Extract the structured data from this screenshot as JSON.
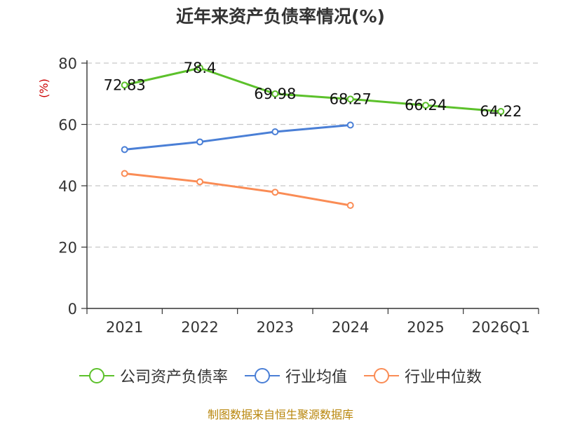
{
  "chart_data": {
    "type": "line",
    "title": "近年来资产负债率情况(%)",
    "ylabel": "(%)",
    "categories": [
      "2021",
      "2022",
      "2023",
      "2024",
      "2025",
      "2026Q1"
    ],
    "ylim": [
      0,
      80
    ],
    "yticks": [
      0,
      20,
      40,
      60,
      80
    ],
    "grid": true,
    "legend_position": "bottom",
    "series": [
      {
        "name": "公司资产负债率",
        "color": "#5cc12b",
        "values": [
          72.83,
          78.4,
          69.98,
          68.27,
          66.24,
          64.22
        ],
        "show_labels": true
      },
      {
        "name": "行业均值",
        "color": "#4a7fd6",
        "values": [
          51.8,
          54.3,
          57.6,
          59.8,
          null,
          null
        ],
        "show_labels": false
      },
      {
        "name": "行业中位数",
        "color": "#fa8c55",
        "values": [
          44.0,
          41.3,
          37.9,
          33.6,
          null,
          null
        ],
        "show_labels": false
      }
    ]
  },
  "source_note": "制图数据来自恒生聚源数据库"
}
